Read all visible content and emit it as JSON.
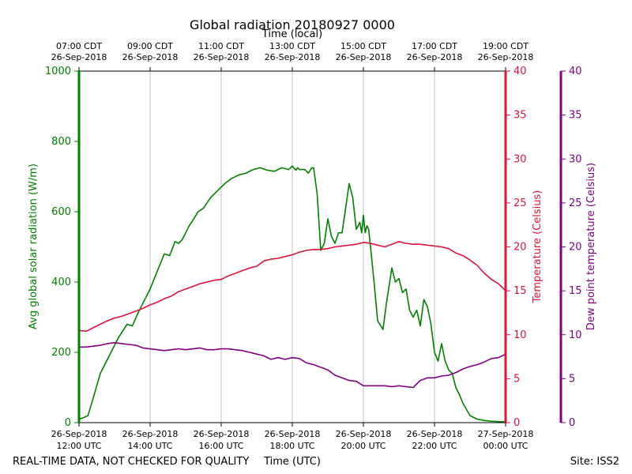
{
  "chart_data": {
    "type": "line",
    "title": "Global radiation 20180927 0000",
    "top_axis_title": "Time (local)",
    "xlabel": "Time (UTC)",
    "footer_left": "REAL-TIME DATA, NOT CHECKED FOR QUALITY",
    "footer_right": "Site: ISS2",
    "x_range_hours": [
      12,
      24
    ],
    "top_ticks": [
      {
        "hour": 12,
        "line1": "07:00 CDT",
        "line2": "26-Sep-2018"
      },
      {
        "hour": 14,
        "line1": "09:00 CDT",
        "line2": "26-Sep-2018"
      },
      {
        "hour": 16,
        "line1": "11:00 CDT",
        "line2": "26-Sep-2018"
      },
      {
        "hour": 18,
        "line1": "13:00 CDT",
        "line2": "26-Sep-2018"
      },
      {
        "hour": 20,
        "line1": "15:00 CDT",
        "line2": "26-Sep-2018"
      },
      {
        "hour": 22,
        "line1": "17:00 CDT",
        "line2": "26-Sep-2018"
      },
      {
        "hour": 24,
        "line1": "19:00 CDT",
        "line2": "26-Sep-2018"
      }
    ],
    "bottom_ticks": [
      {
        "hour": 12,
        "line1": "26-Sep-2018",
        "line2": "12:00 UTC"
      },
      {
        "hour": 14,
        "line1": "26-Sep-2018",
        "line2": "14:00 UTC"
      },
      {
        "hour": 16,
        "line1": "26-Sep-2018",
        "line2": "16:00 UTC"
      },
      {
        "hour": 18,
        "line1": "26-Sep-2018",
        "line2": "18:00 UTC"
      },
      {
        "hour": 20,
        "line1": "26-Sep-2018",
        "line2": "20:00 UTC"
      },
      {
        "hour": 22,
        "line1": "26-Sep-2018",
        "line2": "22:00 UTC"
      },
      {
        "hour": 24,
        "line1": "27-Sep-2018",
        "line2": "00:00 UTC"
      }
    ],
    "axes": {
      "radiation": {
        "label": "Avg global solar radiation (W/m)",
        "range": [
          0,
          1000
        ],
        "ticks": [
          0,
          200,
          400,
          600,
          800,
          1000
        ],
        "color": "#008000"
      },
      "temperature": {
        "label": "Temperature (Celsius)",
        "range": [
          0,
          40
        ],
        "ticks": [
          0,
          5,
          10,
          15,
          20,
          25,
          30,
          35,
          40
        ],
        "color": "#dc143c"
      },
      "dewpoint": {
        "label": "Dew point temperature (Celsius)",
        "range": [
          0,
          40
        ],
        "ticks": [
          0,
          5,
          10,
          15,
          20,
          25,
          30,
          35,
          40
        ],
        "color": "#800080"
      }
    },
    "series": [
      {
        "name": "Avg global solar radiation",
        "axis": "radiation",
        "color": "#008000",
        "hours": [
          12.0,
          12.1,
          12.25,
          12.4,
          12.6,
          12.85,
          13.1,
          13.35,
          13.5,
          13.65,
          13.8,
          14.0,
          14.2,
          14.4,
          14.55,
          14.7,
          14.8,
          14.9,
          15.0,
          15.1,
          15.2,
          15.35,
          15.5,
          15.7,
          15.9,
          16.1,
          16.3,
          16.5,
          16.7,
          16.9,
          17.1,
          17.3,
          17.5,
          17.7,
          17.9,
          18.0,
          18.1,
          18.15,
          18.2,
          18.35,
          18.45,
          18.55,
          18.6,
          18.7,
          18.8,
          18.9,
          19.0,
          19.1,
          19.2,
          19.3,
          19.4,
          19.5,
          19.6,
          19.7,
          19.8,
          19.9,
          19.95,
          20.0,
          20.05,
          20.1,
          20.15,
          20.2,
          20.3,
          20.4,
          20.55,
          20.65,
          20.8,
          20.9,
          21.0,
          21.1,
          21.2,
          21.3,
          21.4,
          21.5,
          21.6,
          21.7,
          21.8,
          21.9,
          22.0,
          22.1,
          22.2,
          22.3,
          22.4,
          22.5,
          22.6,
          22.7,
          22.8,
          23.0,
          23.2,
          23.4,
          23.6,
          23.8,
          24.0
        ],
        "values": [
          10,
          13,
          20,
          70,
          140,
          190,
          240,
          280,
          275,
          310,
          340,
          380,
          430,
          480,
          475,
          515,
          510,
          520,
          540,
          560,
          575,
          600,
          610,
          640,
          660,
          680,
          695,
          705,
          710,
          720,
          725,
          718,
          715,
          725,
          720,
          730,
          718,
          725,
          720,
          720,
          710,
          725,
          725,
          650,
          490,
          510,
          580,
          530,
          510,
          540,
          540,
          610,
          680,
          640,
          550,
          570,
          540,
          590,
          540,
          560,
          550,
          500,
          400,
          290,
          265,
          340,
          440,
          400,
          410,
          370,
          380,
          320,
          300,
          320,
          275,
          350,
          330,
          280,
          200,
          175,
          225,
          175,
          150,
          140,
          100,
          80,
          55,
          20,
          10,
          6,
          4,
          3,
          2
        ]
      },
      {
        "name": "Temperature",
        "axis": "temperature",
        "color": "#dc143c",
        "hours": [
          12.0,
          12.2,
          12.4,
          12.6,
          12.8,
          13.0,
          13.2,
          13.4,
          13.6,
          13.8,
          14.0,
          14.2,
          14.4,
          14.6,
          14.8,
          15.0,
          15.2,
          15.4,
          15.6,
          15.8,
          16.0,
          16.2,
          16.4,
          16.6,
          16.8,
          17.0,
          17.2,
          17.4,
          17.6,
          17.8,
          18.0,
          18.2,
          18.4,
          18.6,
          18.8,
          19.0,
          19.2,
          19.4,
          19.6,
          19.8,
          20.0,
          20.2,
          20.4,
          20.6,
          20.8,
          21.0,
          21.2,
          21.4,
          21.6,
          21.8,
          22.0,
          22.2,
          22.4,
          22.6,
          22.8,
          23.0,
          23.2,
          23.4,
          23.6,
          23.8,
          24.0
        ],
        "values": [
          10.5,
          10.4,
          10.8,
          11.2,
          11.6,
          11.9,
          12.1,
          12.4,
          12.7,
          13.0,
          13.4,
          13.7,
          14.1,
          14.4,
          14.9,
          15.2,
          15.5,
          15.8,
          16.0,
          16.2,
          16.3,
          16.7,
          17.0,
          17.3,
          17.6,
          17.8,
          18.4,
          18.6,
          18.7,
          18.9,
          19.1,
          19.4,
          19.6,
          19.7,
          19.7,
          19.8,
          20.0,
          20.1,
          20.2,
          20.3,
          20.5,
          20.4,
          20.2,
          20.0,
          20.3,
          20.6,
          20.4,
          20.3,
          20.3,
          20.2,
          20.1,
          20.0,
          19.8,
          19.3,
          19.0,
          18.5,
          17.9,
          17.0,
          16.3,
          15.8,
          15.0
        ]
      },
      {
        "name": "Dew point temperature",
        "axis": "dewpoint",
        "color": "#800080",
        "hours": [
          12.0,
          12.2,
          12.4,
          12.6,
          12.8,
          13.0,
          13.2,
          13.4,
          13.6,
          13.8,
          14.0,
          14.2,
          14.4,
          14.6,
          14.8,
          15.0,
          15.2,
          15.4,
          15.6,
          15.8,
          16.0,
          16.2,
          16.4,
          16.6,
          16.8,
          17.0,
          17.2,
          17.4,
          17.6,
          17.8,
          18.0,
          18.2,
          18.4,
          18.6,
          18.8,
          19.0,
          19.2,
          19.4,
          19.6,
          19.8,
          20.0,
          20.2,
          20.4,
          20.6,
          20.8,
          21.0,
          21.2,
          21.4,
          21.6,
          21.8,
          22.0,
          22.2,
          22.4,
          22.6,
          22.8,
          23.0,
          23.2,
          23.4,
          23.6,
          23.8,
          24.0
        ],
        "values": [
          8.6,
          8.6,
          8.7,
          8.8,
          9.0,
          9.1,
          9.0,
          8.9,
          8.8,
          8.5,
          8.4,
          8.3,
          8.2,
          8.3,
          8.4,
          8.3,
          8.4,
          8.5,
          8.3,
          8.3,
          8.4,
          8.4,
          8.3,
          8.2,
          8.0,
          7.8,
          7.6,
          7.2,
          7.4,
          7.2,
          7.4,
          7.3,
          6.8,
          6.6,
          6.3,
          6.0,
          5.4,
          5.1,
          4.8,
          4.7,
          4.2,
          4.2,
          4.2,
          4.2,
          4.1,
          4.2,
          4.1,
          4.0,
          4.8,
          5.1,
          5.1,
          5.3,
          5.4,
          5.7,
          6.1,
          6.4,
          6.6,
          6.9,
          7.3,
          7.4,
          7.8
        ]
      }
    ]
  }
}
